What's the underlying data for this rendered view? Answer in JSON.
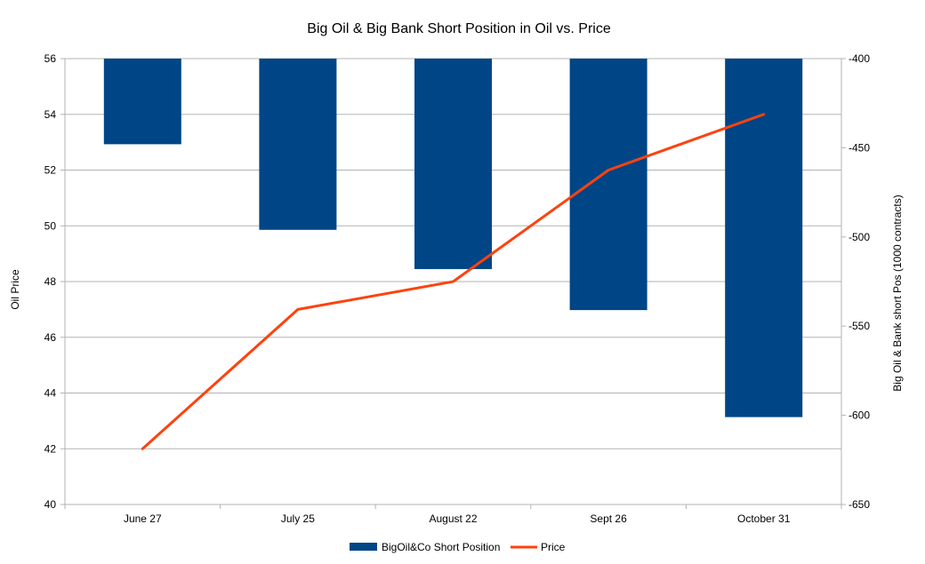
{
  "chart_data": {
    "type": "bar",
    "title": "Big Oil & Big Bank Short Position in Oil vs. Price",
    "categories": [
      "June 27",
      "July 25",
      "August 22",
      "Sept 26",
      "October 31"
    ],
    "series": [
      {
        "name": "BigOil&Co Short Position",
        "type": "bar",
        "axis": "right",
        "color": "#004586",
        "values": [
          -448,
          -496,
          -518,
          -541,
          -601
        ]
      },
      {
        "name": "Price",
        "type": "line",
        "axis": "left",
        "color": "#ff420e",
        "values": [
          42,
          47,
          48,
          52,
          54
        ]
      }
    ],
    "y_left": {
      "label": "Oil Price",
      "range": [
        40,
        56
      ],
      "ticks": [
        "40",
        "42",
        "44",
        "46",
        "48",
        "50",
        "52",
        "54",
        "56"
      ]
    },
    "y_right": {
      "label": "Big Oil & Bank short Pos (1000 contracts)",
      "range": [
        -650,
        -400
      ],
      "ticks": [
        "-400",
        "-450",
        "-500",
        "-550",
        "-600",
        "-650"
      ]
    },
    "grid": true,
    "legend_position": "bottom"
  }
}
